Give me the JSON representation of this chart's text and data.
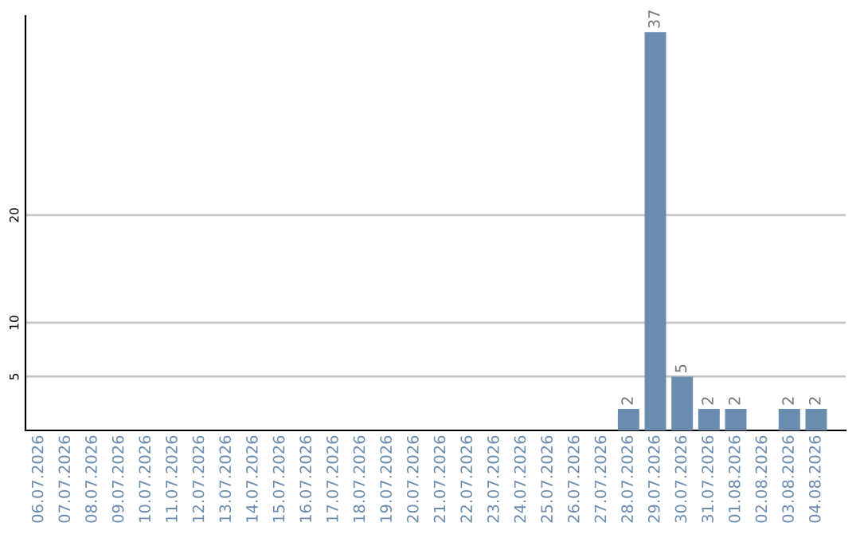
{
  "chart_data": {
    "type": "bar",
    "categories": [
      "06.07.2026",
      "07.07.2026",
      "08.07.2026",
      "09.07.2026",
      "10.07.2026",
      "11.07.2026",
      "12.07.2026",
      "13.07.2026",
      "14.07.2026",
      "15.07.2026",
      "16.07.2026",
      "17.07.2026",
      "18.07.2026",
      "19.07.2026",
      "20.07.2026",
      "21.07.2026",
      "22.07.2026",
      "23.07.2026",
      "24.07.2026",
      "25.07.2026",
      "26.07.2026",
      "27.07.2026",
      "28.07.2026",
      "29.07.2026",
      "30.07.2026",
      "31.07.2026",
      "01.08.2026",
      "02.08.2026",
      "03.08.2026",
      "04.08.2026"
    ],
    "values": [
      0,
      0,
      0,
      0,
      0,
      0,
      0,
      0,
      0,
      0,
      0,
      0,
      0,
      0,
      0,
      0,
      0,
      0,
      0,
      0,
      0,
      0,
      2,
      37,
      5,
      2,
      2,
      0,
      2,
      2
    ],
    "value_labels": [
      null,
      null,
      null,
      null,
      null,
      null,
      null,
      null,
      null,
      null,
      null,
      null,
      null,
      null,
      null,
      null,
      null,
      null,
      null,
      null,
      null,
      null,
      "2",
      "37",
      "5",
      "2",
      "2",
      null,
      "2",
      "2"
    ],
    "color": "#6a8caf",
    "ylim": [
      0,
      38.5
    ],
    "yticks": [
      5,
      10,
      20
    ],
    "grid": "y"
  }
}
